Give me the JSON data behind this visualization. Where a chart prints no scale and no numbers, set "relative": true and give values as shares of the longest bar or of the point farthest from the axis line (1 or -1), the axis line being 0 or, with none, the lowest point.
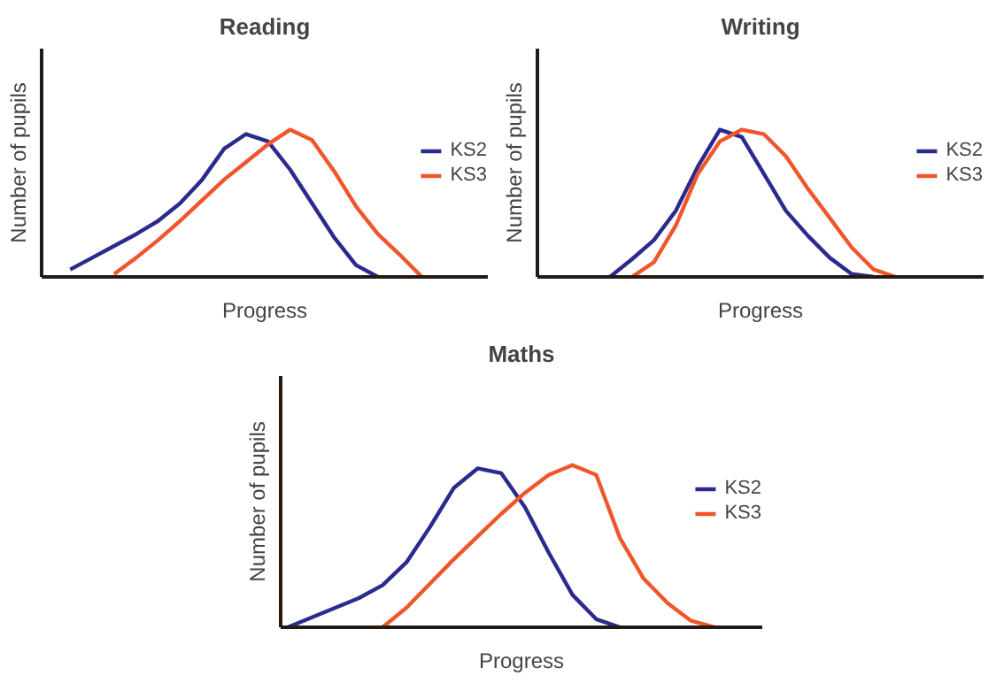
{
  "chart_data": [
    {
      "type": "line",
      "title": "Reading",
      "xlabel": "Progress",
      "ylabel": "Number of pupils",
      "relative": true,
      "legend": "right",
      "grid": false,
      "marker": "none",
      "line_style": "solid",
      "categories": [
        null,
        null,
        null,
        null,
        null,
        null,
        null,
        null,
        null,
        null,
        null,
        null,
        null,
        null,
        null,
        null,
        null,
        null,
        null,
        null,
        null
      ],
      "series": [
        {
          "name": "KS2",
          "color": "#2b2a8e",
          "values": [
            null,
            0.05,
            0.13,
            0.21,
            0.29,
            0.38,
            0.5,
            0.66,
            0.87,
            0.97,
            0.92,
            0.73,
            0.5,
            0.27,
            0.08,
            0,
            null,
            null,
            null,
            null,
            null
          ]
        },
        {
          "name": "KS3",
          "color": "#f0562a",
          "values": [
            null,
            null,
            null,
            0.02,
            0.13,
            0.25,
            0.38,
            0.52,
            0.66,
            0.78,
            0.9,
            1.0,
            0.93,
            0.72,
            0.48,
            0.29,
            0.15,
            0,
            null,
            null,
            null
          ]
        }
      ]
    },
    {
      "type": "line",
      "title": "Writing",
      "xlabel": "Progress",
      "ylabel": "Number of pupils",
      "relative": true,
      "legend": "right",
      "grid": false,
      "marker": "none",
      "line_style": "solid",
      "categories": [
        null,
        null,
        null,
        null,
        null,
        null,
        null,
        null,
        null,
        null,
        null,
        null,
        null,
        null,
        null,
        null,
        null,
        null,
        null,
        null,
        null
      ],
      "series": [
        {
          "name": "KS2",
          "color": "#2b2a8e",
          "values": [
            null,
            null,
            null,
            0,
            0.12,
            0.25,
            0.45,
            0.75,
            1.0,
            0.95,
            0.7,
            0.45,
            0.28,
            0.13,
            0.02,
            0,
            null,
            null,
            null,
            null,
            null
          ]
        },
        {
          "name": "KS3",
          "color": "#f0562a",
          "values": [
            null,
            null,
            null,
            null,
            0,
            0.1,
            0.35,
            0.7,
            0.92,
            1.0,
            0.97,
            0.82,
            0.6,
            0.4,
            0.2,
            0.05,
            0,
            null,
            null,
            null,
            null
          ]
        }
      ]
    },
    {
      "type": "line",
      "title": "Maths",
      "xlabel": "Progress",
      "ylabel": "Number of pupils",
      "relative": true,
      "legend": "right",
      "grid": false,
      "marker": "none",
      "line_style": "solid",
      "categories": [
        null,
        null,
        null,
        null,
        null,
        null,
        null,
        null,
        null,
        null,
        null,
        null,
        null,
        null,
        null,
        null,
        null,
        null,
        null,
        null,
        null
      ],
      "series": [
        {
          "name": "KS2",
          "color": "#2b2a8e",
          "values": [
            0,
            0.06,
            0.12,
            0.18,
            0.26,
            0.4,
            0.62,
            0.86,
            0.98,
            0.95,
            0.74,
            0.46,
            0.2,
            0.05,
            0,
            null,
            null,
            null,
            null,
            null,
            null
          ]
        },
        {
          "name": "KS3",
          "color": "#f0562a",
          "values": [
            null,
            null,
            null,
            null,
            0,
            0.12,
            0.27,
            0.42,
            0.56,
            0.7,
            0.83,
            0.94,
            1.0,
            0.94,
            0.55,
            0.3,
            0.15,
            0.04,
            0,
            null,
            null
          ]
        }
      ]
    }
  ]
}
